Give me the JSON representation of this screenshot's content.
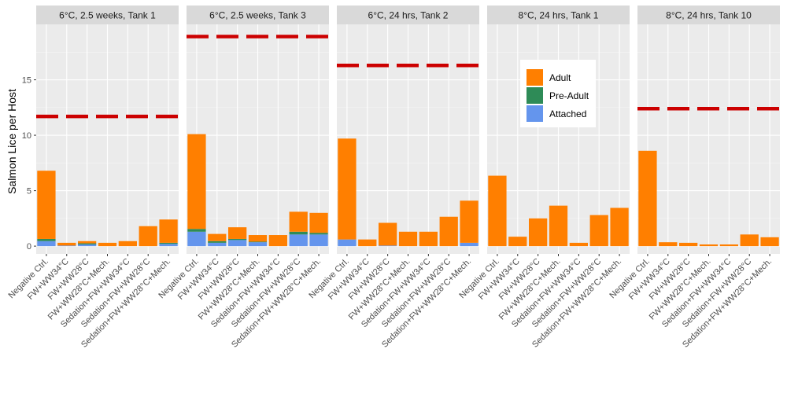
{
  "chart_data": {
    "type": "bar",
    "stacked": true,
    "ylabel": "Salmon Lice per Host",
    "xlabel": "",
    "ylim": [
      -0.7,
      20.0
    ],
    "yticks": [
      0,
      5,
      10,
      15
    ],
    "grid": true,
    "legend_position": "inside-top-right",
    "categories": [
      "Negative Ctrl.",
      "FW+WW34°C",
      "FW+WW28°C",
      "FW+WW28°C+Mech.",
      "Sedation+FW+WW34°C",
      "Sedation+FW+WW28°C",
      "Sedation+FW+WW28°C+Mech."
    ],
    "series_names": [
      "Attached",
      "Pre-Adult",
      "Adult"
    ],
    "legend": {
      "items": [
        {
          "label": "Adult",
          "color": "#FF7F00"
        },
        {
          "label": "Pre-Adult",
          "color": "#2E8B57"
        },
        {
          "label": "Attached",
          "color": "#6495ED"
        }
      ]
    },
    "colors": {
      "Attached": "#6495ED",
      "Pre-Adult": "#2E8B57",
      "Adult": "#FF7F00",
      "reference_line": "#CC0000"
    },
    "panels": [
      {
        "title": "6°C, 2.5 weeks, Tank 1",
        "reference_line": 11.7,
        "series": [
          {
            "name": "Attached",
            "values": [
              0.45,
              0.05,
              0.15,
              0.0,
              0.0,
              0.0,
              0.2
            ]
          },
          {
            "name": "Pre-Adult",
            "values": [
              0.2,
              0.0,
              0.1,
              0.0,
              0.0,
              0.0,
              0.1
            ]
          },
          {
            "name": "Adult",
            "values": [
              6.15,
              0.25,
              0.2,
              0.3,
              0.45,
              1.8,
              2.1
            ]
          }
        ]
      },
      {
        "title": "6°C, 2.5 weeks, Tank 3",
        "reference_line": 18.9,
        "series": [
          {
            "name": "Attached",
            "values": [
              1.3,
              0.3,
              0.55,
              0.35,
              0.0,
              1.05,
              1.05
            ]
          },
          {
            "name": "Pre-Adult",
            "values": [
              0.25,
              0.15,
              0.1,
              0.05,
              0.0,
              0.25,
              0.15
            ]
          },
          {
            "name": "Adult",
            "values": [
              8.55,
              0.65,
              1.05,
              0.6,
              1.0,
              1.8,
              1.8
            ]
          }
        ]
      },
      {
        "title": "6°C, 24 hrs, Tank 2",
        "reference_line": 16.3,
        "series": [
          {
            "name": "Attached",
            "values": [
              0.6,
              0.0,
              0.05,
              0.0,
              0.0,
              0.0,
              0.3
            ]
          },
          {
            "name": "Pre-Adult",
            "values": [
              0.0,
              0.0,
              0.0,
              0.0,
              0.0,
              0.0,
              0.0
            ]
          },
          {
            "name": "Adult",
            "values": [
              9.1,
              0.6,
              2.05,
              1.3,
              1.3,
              2.65,
              3.8
            ]
          }
        ]
      },
      {
        "title": "8°C, 24 hrs, Tank 1",
        "reference_line": null,
        "series": [
          {
            "name": "Attached",
            "values": [
              0.0,
              0.0,
              0.0,
              0.0,
              0.0,
              0.0,
              0.0
            ]
          },
          {
            "name": "Pre-Adult",
            "values": [
              0.0,
              0.0,
              0.0,
              0.0,
              0.0,
              0.0,
              0.0
            ]
          },
          {
            "name": "Adult",
            "values": [
              6.35,
              0.85,
              2.5,
              3.65,
              0.3,
              2.8,
              3.45
            ]
          }
        ]
      },
      {
        "title": "8°C, 24 hrs, Tank 10",
        "reference_line": 12.4,
        "series": [
          {
            "name": "Attached",
            "values": [
              0.0,
              0.0,
              0.0,
              0.0,
              0.0,
              0.0,
              0.0
            ]
          },
          {
            "name": "Pre-Adult",
            "values": [
              0.0,
              0.0,
              0.0,
              0.0,
              0.0,
              0.0,
              0.0
            ]
          },
          {
            "name": "Adult",
            "values": [
              8.6,
              0.35,
              0.3,
              0.15,
              0.15,
              1.05,
              0.8
            ]
          }
        ]
      }
    ]
  }
}
